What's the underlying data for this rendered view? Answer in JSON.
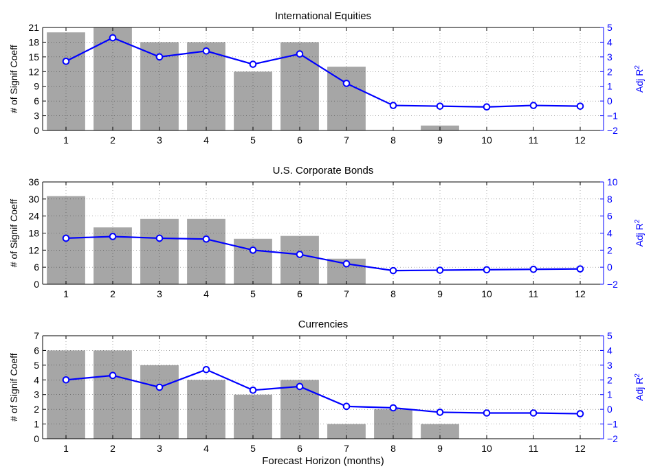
{
  "figure": {
    "xlabel": "Forecast Horizon (months)"
  },
  "chart_data": [
    {
      "type": "bar",
      "title": "International Equities",
      "categories": [
        "1",
        "2",
        "3",
        "4",
        "5",
        "6",
        "7",
        "8",
        "9",
        "10",
        "11",
        "12"
      ],
      "ylabel": "# of Signif Coeff",
      "ylim": [
        0,
        21
      ],
      "yticks": [
        0,
        3,
        6,
        9,
        12,
        15,
        18,
        21
      ],
      "y2label": "Adj R",
      "y2label_superscript": "2",
      "y2lim": [
        -2,
        5
      ],
      "y2ticks": [
        -2,
        -1,
        0,
        1,
        2,
        3,
        4,
        5
      ],
      "grid": true,
      "series": [
        {
          "kind": "bar",
          "axis": "left",
          "color": "#a6a6a6",
          "values": [
            20,
            21,
            18,
            18,
            12,
            18,
            13,
            0,
            1,
            0,
            0,
            0
          ]
        },
        {
          "kind": "line",
          "axis": "right",
          "color": "#0000ff",
          "marker": "circle",
          "values": [
            2.7,
            4.3,
            3.0,
            3.4,
            2.5,
            3.2,
            1.2,
            -0.3,
            -0.35,
            -0.4,
            -0.3,
            -0.35
          ]
        }
      ]
    },
    {
      "type": "bar",
      "title": "U.S. Corporate Bonds",
      "categories": [
        "1",
        "2",
        "3",
        "4",
        "5",
        "6",
        "7",
        "8",
        "9",
        "10",
        "11",
        "12"
      ],
      "ylabel": "# of Signif Coeff",
      "ylim": [
        0,
        36
      ],
      "yticks": [
        0,
        6,
        12,
        18,
        24,
        30,
        36
      ],
      "y2label": "Adj R",
      "y2label_superscript": "2",
      "y2lim": [
        -2,
        10
      ],
      "y2ticks": [
        -2,
        0,
        2,
        4,
        6,
        8,
        10
      ],
      "grid": true,
      "series": [
        {
          "kind": "bar",
          "axis": "left",
          "color": "#a6a6a6",
          "values": [
            31,
            20,
            23,
            23,
            16,
            17,
            9,
            0,
            0,
            0,
            0,
            0
          ]
        },
        {
          "kind": "line",
          "axis": "right",
          "color": "#0000ff",
          "marker": "circle",
          "values": [
            3.4,
            3.6,
            3.4,
            3.3,
            2.0,
            1.5,
            0.4,
            -0.4,
            -0.35,
            -0.3,
            -0.25,
            -0.2
          ]
        }
      ]
    },
    {
      "type": "bar",
      "title": "Currencies",
      "categories": [
        "1",
        "2",
        "3",
        "4",
        "5",
        "6",
        "7",
        "8",
        "9",
        "10",
        "11",
        "12"
      ],
      "ylabel": "# of Signif Coeff",
      "ylim": [
        0,
        7
      ],
      "yticks": [
        0,
        1,
        2,
        3,
        4,
        5,
        6,
        7
      ],
      "y2label": "Adj R",
      "y2label_superscript": "2",
      "y2lim": [
        -2,
        5
      ],
      "y2ticks": [
        -2,
        -1,
        0,
        1,
        2,
        3,
        4,
        5
      ],
      "grid": true,
      "series": [
        {
          "kind": "bar",
          "axis": "left",
          "color": "#a6a6a6",
          "values": [
            6,
            6,
            5,
            4,
            3,
            4,
            1,
            2,
            1,
            0,
            0,
            0
          ]
        },
        {
          "kind": "line",
          "axis": "right",
          "color": "#0000ff",
          "marker": "circle",
          "values": [
            2.0,
            2.3,
            1.5,
            2.7,
            1.3,
            1.55,
            0.2,
            0.1,
            -0.2,
            -0.25,
            -0.25,
            -0.3
          ]
        }
      ]
    }
  ]
}
